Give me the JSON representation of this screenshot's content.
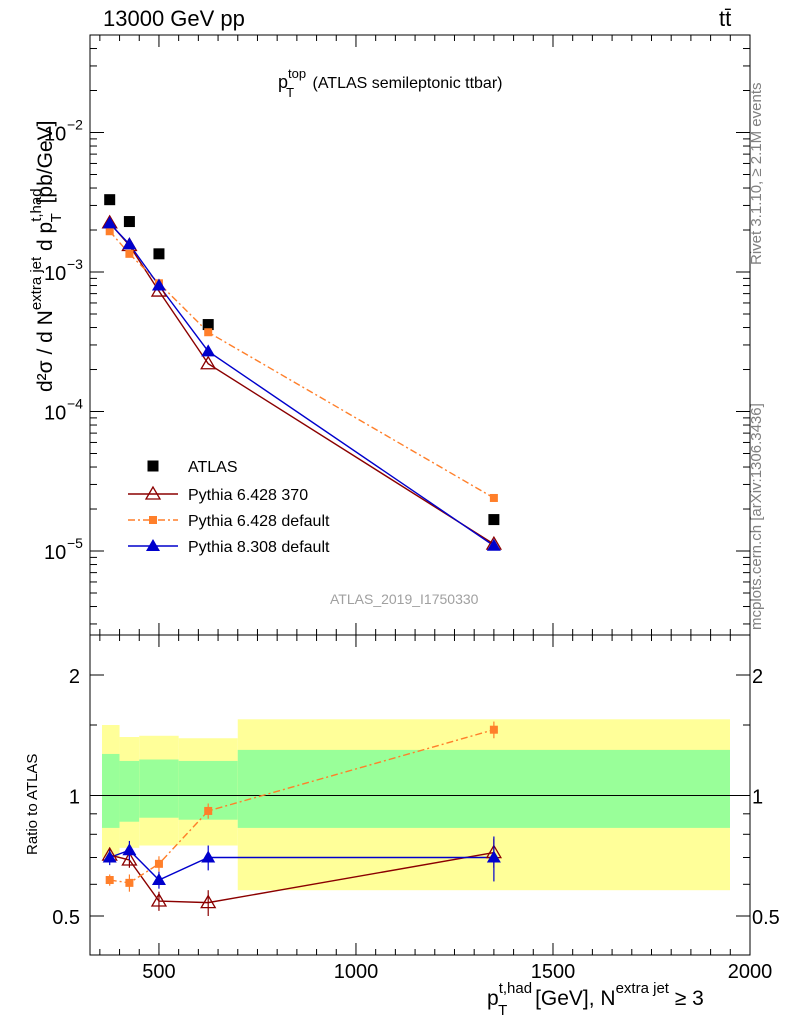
{
  "header": {
    "left": "13000 GeV pp",
    "right": "tt̄"
  },
  "side": {
    "rivet": "Rivet 3.1.10, ≥ 2.1M events",
    "mcplots": "mcplots.cern.ch [arXiv:1306.3436]"
  },
  "plot_title": {
    "main": "p",
    "sup": "top",
    "sub": "T",
    "rest": " (ATLAS semileptonic ttbar)"
  },
  "watermark": "ATLAS_2019_I1750330",
  "ylabel_main": {
    "d2sigma": "d²σ / d N",
    "sup1": "extra jet",
    "dp": " d p",
    "sup2": "t,had",
    "sub2": "T",
    "unit": " [pb/GeV]"
  },
  "ylabel_ratio": "Ratio to ATLAS",
  "xlabel": {
    "p": "p",
    "sup": "t,had",
    "sub": "T",
    "unit": " [GeV], N",
    "sup2": "extra jet",
    "tail": " ≥ 3"
  },
  "ticks": {
    "main_y": [
      {
        "label": "10",
        "exp": "−2",
        "value": 0.01
      },
      {
        "label": "10",
        "exp": "−3",
        "value": 0.001
      },
      {
        "label": "10",
        "exp": "−4",
        "value": 0.0001
      },
      {
        "label": "10",
        "exp": "−5",
        "value": 1e-05
      }
    ],
    "ratio_y": [
      {
        "label": "2",
        "value": 2
      },
      {
        "label": "1",
        "value": 1
      },
      {
        "label": "0.5",
        "value": 0.5
      }
    ],
    "x": [
      {
        "label": "500",
        "value": 500
      },
      {
        "label": "1000",
        "value": 1000
      },
      {
        "label": "1500",
        "value": 1500
      },
      {
        "label": "2000",
        "value": 2000
      }
    ]
  },
  "colors": {
    "atlas": "#000000",
    "p6_370": "#8b0000",
    "p6_default": "#ff7f2a",
    "p8": "#0000cc",
    "band_inner": "#99ff99",
    "band_outer": "#ffff99"
  },
  "chart_data": {
    "type": "scatter",
    "xlim": [
      325,
      2000
    ],
    "main_ylim": [
      2.5e-06,
      0.05
    ],
    "main_yscale": "log",
    "ratio_ylim": [
      0.5,
      2
    ],
    "ratio_yscale": "log",
    "x": [
      375,
      425,
      500,
      625,
      1350
    ],
    "bins": [
      [
        350,
        400
      ],
      [
        400,
        450
      ],
      [
        450,
        550
      ],
      [
        550,
        700
      ],
      [
        700,
        2000
      ]
    ],
    "series": [
      {
        "name": "ATLAS",
        "values": [
          0.0033,
          0.0023,
          0.00135,
          0.00042,
          1.68e-05
        ],
        "marker": "square"
      },
      {
        "name": "Pythia 6.428 370",
        "values": [
          0.00225,
          0.00155,
          0.00073,
          0.00022,
          1.12e-05
        ],
        "marker": "open-triangle",
        "line": "solid"
      },
      {
        "name": "Pythia 6.428 default",
        "values": [
          0.00196,
          0.00135,
          0.00083,
          0.00037,
          2.4e-05
        ],
        "marker": "small-square",
        "line": "dashdot"
      },
      {
        "name": "Pythia 8.308 default",
        "values": [
          0.00223,
          0.00158,
          0.0008,
          0.00027,
          1.09e-05
        ],
        "marker": "filled-triangle",
        "line": "solid"
      }
    ],
    "ratio": {
      "reference": 1,
      "band_inner": [
        [
          0.83,
          1.27
        ],
        [
          0.86,
          1.22
        ],
        [
          0.88,
          1.23
        ],
        [
          0.87,
          1.22
        ],
        [
          0.83,
          1.3
        ]
      ],
      "band_outer": [
        [
          0.7,
          1.5
        ],
        [
          0.74,
          1.4
        ],
        [
          0.75,
          1.41
        ],
        [
          0.75,
          1.39
        ],
        [
          0.58,
          1.55
        ]
      ],
      "series": [
        {
          "name": "Pythia 6.428 370",
          "values": [
            0.71,
            0.69,
            0.545,
            0.54,
            0.72
          ],
          "err": [
            0.03,
            0.03,
            0.03,
            0.04,
            0.06
          ]
        },
        {
          "name": "Pythia 6.428 default",
          "values": [
            0.615,
            0.605,
            0.675,
            0.915,
            1.46
          ],
          "err": [
            0.02,
            0.03,
            0.03,
            0.04,
            0.07
          ]
        },
        {
          "name": "Pythia 8.308 default",
          "values": [
            0.7,
            0.73,
            0.615,
            0.7,
            0.7
          ],
          "err": [
            0.03,
            0.04,
            0.03,
            0.05,
            0.09
          ]
        }
      ]
    }
  }
}
